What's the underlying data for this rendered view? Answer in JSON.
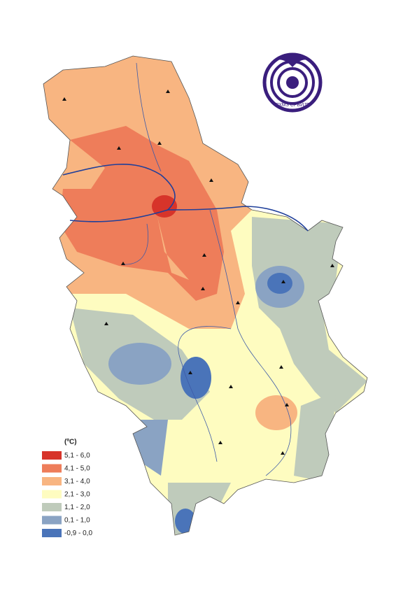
{
  "logo": {
    "text": "РХМЗ СРБИЈЕ"
  },
  "legend": {
    "title": "(ºC)",
    "items": [
      {
        "label": "5,1 - 6,0",
        "color": "#d7342a"
      },
      {
        "label": "4,1 - 5,0",
        "color": "#ee7d5a"
      },
      {
        "label": "3,1 - 4,0",
        "color": "#f8b581"
      },
      {
        "label": "2,1 - 3,0",
        "color": "#fefcc0"
      },
      {
        "label": "1,1 - 2,0",
        "color": "#bfcbbb"
      },
      {
        "label": "0,1 - 1,0",
        "color": "#8aa3c3"
      },
      {
        "label": "-0,9 - 0,0",
        "color": "#4a74b9"
      }
    ]
  }
}
